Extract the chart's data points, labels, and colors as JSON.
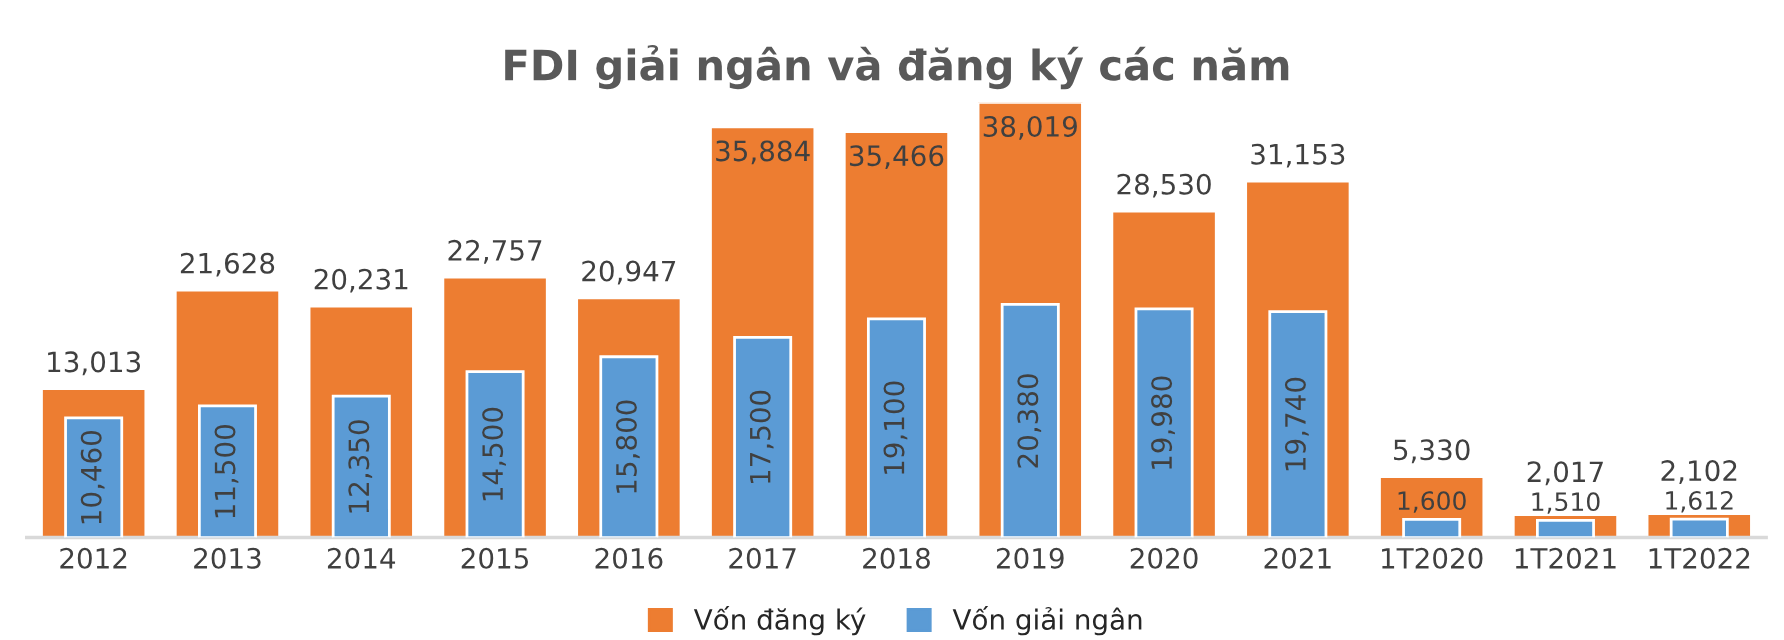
{
  "chart_data": {
    "type": "bar",
    "title": "FDI giải ngân và đăng ký các năm",
    "categories": [
      "2012",
      "2013",
      "2014",
      "2015",
      "2016",
      "2017",
      "2018",
      "2019",
      "2020",
      "2021",
      "1T2020",
      "1T2021",
      "1T2022"
    ],
    "series": [
      {
        "name": "Vốn đăng ký",
        "color": "#ed7d31",
        "values": [
          13013,
          21628,
          20231,
          22757,
          20947,
          35884,
          35466,
          38019,
          28530,
          31153,
          5330,
          2017,
          2102
        ],
        "value_labels": [
          "13,013",
          "21,628",
          "20,231",
          "22,757",
          "20,947",
          "35,884",
          "35,466",
          "38,019",
          "28,530",
          "31,153",
          "5,330",
          "2,017",
          "2,102"
        ]
      },
      {
        "name": "Vốn giải ngân",
        "color": "#5b9bd5",
        "values": [
          10460,
          11500,
          12350,
          14500,
          15800,
          17500,
          19100,
          20380,
          19980,
          19740,
          1600,
          1510,
          1612
        ],
        "value_labels": [
          "10,460",
          "11,500",
          "12,350",
          "14,500",
          "15,800",
          "17,500",
          "19,100",
          "20,380",
          "19,980",
          "19,740",
          "1,600",
          "1,510",
          "1,612"
        ]
      }
    ],
    "legend": "bottom",
    "grid": false
  }
}
